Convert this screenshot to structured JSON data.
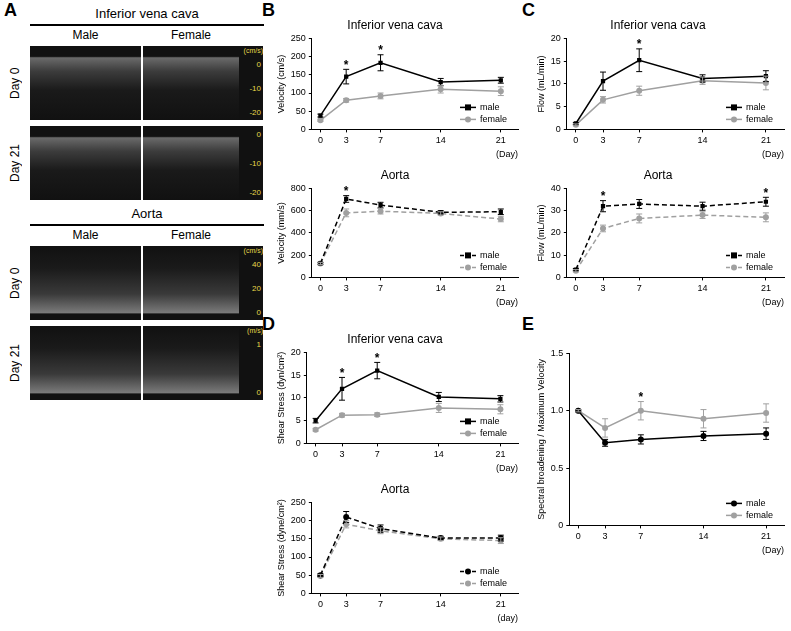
{
  "panel_a": {
    "label": "A",
    "sections": [
      {
        "title": "Inferior vena cava",
        "columns": [
          "Male",
          "Female"
        ],
        "rows": [
          {
            "label": "Day 0",
            "unit": "(cm/s)",
            "scale_ticks": [
              0,
              -10,
              -20
            ]
          },
          {
            "label": "Day 21",
            "scale_ticks": [
              0,
              -10,
              -20
            ]
          }
        ]
      },
      {
        "title": "Aorta",
        "columns": [
          "Male",
          "Female"
        ],
        "rows": [
          {
            "label": "Day 0",
            "unit": "(cm/s)",
            "scale_ticks": [
              40,
              20,
              0
            ]
          },
          {
            "label": "Day 21",
            "unit": "(m/s)",
            "scale_ticks": [
              1,
              0
            ]
          }
        ]
      }
    ]
  },
  "chart_data": [
    {
      "panel": "B",
      "type": "line",
      "title": "Inferior vena cava",
      "x_label": "(Day)",
      "y_label": "Velocity (cm/s)",
      "x": [
        0,
        3,
        7,
        14,
        21
      ],
      "xlim": [
        -1,
        23
      ],
      "xticks": [
        0,
        3,
        7,
        14,
        21
      ],
      "ylim": [
        0,
        250
      ],
      "yticks": [
        0,
        50,
        100,
        150,
        200,
        250
      ],
      "grid": false,
      "legend": "lower right",
      "series": [
        {
          "name": "male",
          "color": "#000000",
          "marker": "square",
          "line_style": "solid",
          "values": [
            38,
            145,
            183,
            130,
            135
          ],
          "errors": [
            4,
            20,
            22,
            10,
            8
          ]
        },
        {
          "name": "female",
          "color": "#a0a0a0",
          "marker": "circle",
          "line_style": "solid",
          "values": [
            25,
            80,
            92,
            110,
            105
          ],
          "errors": [
            3,
            5,
            8,
            10,
            12
          ]
        }
      ],
      "annotations": [
        {
          "x": 3,
          "text": "*"
        },
        {
          "x": 7,
          "text": "*"
        }
      ]
    },
    {
      "type": "line",
      "title": "Aorta",
      "x_label": "(Day)",
      "y_label": "Velocity (mm/s)",
      "x": [
        0,
        3,
        7,
        14,
        21
      ],
      "xlim": [
        -1,
        23
      ],
      "xticks": [
        0,
        3,
        7,
        14,
        21
      ],
      "ylim": [
        0,
        800
      ],
      "yticks": [
        0,
        200,
        400,
        600,
        800
      ],
      "grid": false,
      "legend": "lower right",
      "series": [
        {
          "name": "male",
          "color": "#000000",
          "marker": "square",
          "line_style": "dashed",
          "values": [
            125,
            705,
            650,
            585,
            590
          ],
          "errors": [
            10,
            30,
            25,
            15,
            25
          ]
        },
        {
          "name": "female",
          "color": "#a0a0a0",
          "marker": "circle",
          "line_style": "dashed",
          "values": [
            125,
            580,
            595,
            575,
            525
          ],
          "errors": [
            10,
            35,
            25,
            15,
            25
          ]
        }
      ],
      "annotations": [
        {
          "x": 3,
          "text": "*"
        }
      ]
    },
    {
      "panel": "C",
      "type": "line",
      "title": "Inferior vena cava",
      "x_label": "(Day)",
      "y_label": "Flow (mL/min)",
      "x": [
        0,
        3,
        7,
        14,
        21
      ],
      "xlim": [
        -1,
        23
      ],
      "xticks": [
        0,
        3,
        7,
        14,
        21
      ],
      "ylim": [
        0,
        20
      ],
      "yticks": [
        0,
        5,
        10,
        15,
        20
      ],
      "grid": false,
      "legend": "lower right",
      "series": [
        {
          "name": "male",
          "color": "#000000",
          "marker": "square",
          "line_style": "solid",
          "values": [
            1.3,
            10.6,
            15.2,
            11.2,
            11.7
          ],
          "errors": [
            0.2,
            2,
            2.5,
            0.8,
            1.2
          ]
        },
        {
          "name": "female",
          "color": "#a0a0a0",
          "marker": "circle",
          "line_style": "solid",
          "values": [
            1,
            6.5,
            8.5,
            10.7,
            10.2
          ],
          "errors": [
            0.2,
            0.7,
            1,
            0.8,
            1.5
          ]
        }
      ],
      "annotations": [
        {
          "x": 7,
          "text": "*"
        }
      ]
    },
    {
      "type": "line",
      "title": "Aorta",
      "x_label": "(Day)",
      "y_label": "Flow (mL/min)",
      "x": [
        0,
        3,
        7,
        14,
        21
      ],
      "xlim": [
        -1,
        23
      ],
      "xticks": [
        0,
        3,
        7,
        14,
        21
      ],
      "ylim": [
        0,
        40
      ],
      "yticks": [
        0,
        10,
        20,
        30,
        40
      ],
      "grid": false,
      "legend": "lower right",
      "series": [
        {
          "name": "male",
          "color": "#000000",
          "marker": "square",
          "line_style": "dashed",
          "values": [
            3.5,
            32,
            33,
            32,
            34
          ],
          "errors": [
            0.5,
            2.5,
            2,
            1.8,
            2
          ]
        },
        {
          "name": "female",
          "color": "#a0a0a0",
          "marker": "circle",
          "line_style": "dashed",
          "values": [
            3,
            22,
            26.5,
            28,
            27
          ],
          "errors": [
            0.5,
            1.5,
            2,
            1.5,
            2
          ]
        }
      ],
      "annotations": [
        {
          "x": 3,
          "text": "*"
        },
        {
          "x": 21,
          "text": "*"
        }
      ]
    },
    {
      "panel": "D",
      "type": "line",
      "title": "Inferior vena cava",
      "x_label": "(Day)",
      "y_label": "Shear Stress (dyn/cm²)",
      "x": [
        0,
        3,
        7,
        14,
        21
      ],
      "xlim": [
        -1,
        23
      ],
      "xticks": [
        0,
        3,
        7,
        14,
        21
      ],
      "ylim": [
        0,
        20
      ],
      "yticks": [
        0,
        5,
        10,
        15,
        20
      ],
      "grid": false,
      "legend": "lower right",
      "series": [
        {
          "name": "male",
          "color": "#000000",
          "marker": "square",
          "line_style": "solid",
          "values": [
            5,
            12,
            16,
            10.2,
            9.8
          ],
          "errors": [
            0.5,
            2.5,
            1.8,
            1,
            0.7
          ]
        },
        {
          "name": "female",
          "color": "#a0a0a0",
          "marker": "circle",
          "line_style": "solid",
          "values": [
            3,
            6.2,
            6.3,
            7.8,
            7.5
          ],
          "errors": [
            0.3,
            0.4,
            0.4,
            1,
            1
          ]
        }
      ],
      "annotations": [
        {
          "x": 3,
          "text": "*"
        },
        {
          "x": 7,
          "text": "*"
        }
      ]
    },
    {
      "type": "line",
      "title": "Aorta",
      "x_label": "(day)",
      "y_label": "Shear Stress (dyne/cm²)",
      "x": [
        0,
        3,
        7,
        14,
        21
      ],
      "xlim": [
        -1,
        23
      ],
      "xticks": [
        0,
        3,
        7,
        14,
        21
      ],
      "ylim": [
        0,
        250
      ],
      "yticks": [
        0,
        50,
        100,
        150,
        200,
        250
      ],
      "grid": false,
      "legend": "lower right",
      "series": [
        {
          "name": "male",
          "color": "#000000",
          "marker": "circle",
          "line_style": "dashed",
          "values": [
            50,
            210,
            178,
            152,
            152
          ],
          "errors": [
            4,
            15,
            10,
            5,
            8
          ]
        },
        {
          "name": "female",
          "color": "#a0a0a0",
          "marker": "circle",
          "line_style": "dashed",
          "values": [
            48,
            190,
            172,
            150,
            145
          ],
          "errors": [
            4,
            10,
            8,
            5,
            8
          ]
        }
      ],
      "annotations": []
    },
    {
      "panel": "E",
      "type": "line",
      "title": "",
      "x_label": "(Day)",
      "y_label": "Spectral broadening / Maximum Velocity",
      "x": [
        0,
        3,
        7,
        14,
        21
      ],
      "xlim": [
        -1,
        23
      ],
      "xticks": [
        0,
        3,
        7,
        14,
        21
      ],
      "ylim": [
        0,
        1.5
      ],
      "yticks": [
        0,
        0.5,
        {
          "value": 1,
          "label": "1.0"
        },
        1.5
      ],
      "grid": false,
      "legend": "lower right",
      "series": [
        {
          "name": "male",
          "color": "#000000",
          "marker": "circle",
          "line_style": "solid",
          "values": [
            1.0,
            0.72,
            0.75,
            0.78,
            0.8
          ],
          "errors": [
            0.01,
            0.03,
            0.04,
            0.04,
            0.05
          ]
        },
        {
          "name": "female",
          "color": "#a0a0a0",
          "marker": "circle",
          "line_style": "solid",
          "values": [
            1.0,
            0.85,
            1.0,
            0.93,
            0.98
          ],
          "errors": [
            0.01,
            0.08,
            0.08,
            0.08,
            0.08
          ]
        }
      ],
      "annotations": [
        {
          "x": 7,
          "text": "*"
        }
      ]
    }
  ]
}
